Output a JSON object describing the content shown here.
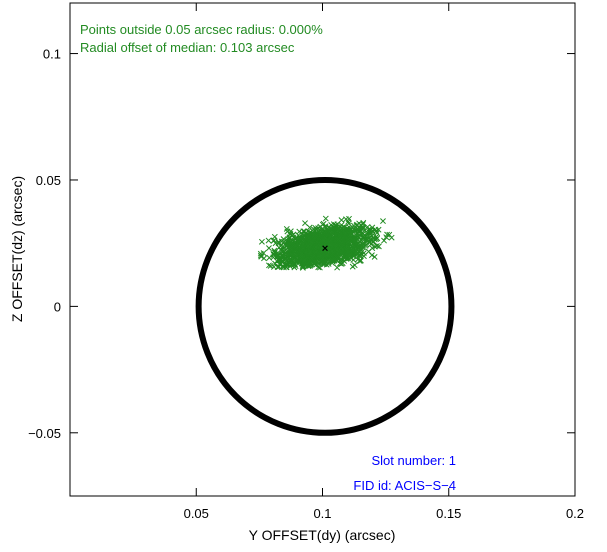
{
  "chart_data": {
    "type": "scatter",
    "xlabel": "Y OFFSET(dy) (arcsec)",
    "ylabel": "Z OFFSET(dz) (arcsec)",
    "xlim": [
      0.0,
      0.2
    ],
    "ylim": [
      -0.075,
      0.12
    ],
    "x_ticks": [
      {
        "value": 0.05,
        "label": "0.05"
      },
      {
        "value": 0.1,
        "label": "0.1"
      },
      {
        "value": 0.15,
        "label": "0.15"
      },
      {
        "value": 0.2,
        "label": "0.2"
      }
    ],
    "y_ticks": [
      {
        "value": -0.05,
        "label": "−0.05"
      },
      {
        "value": 0.0,
        "label": "0"
      },
      {
        "value": 0.05,
        "label": "0.05"
      },
      {
        "value": 0.1,
        "label": "0.1"
      }
    ],
    "grid": false,
    "circle": {
      "center_x": 0.101,
      "center_y": 0.0,
      "radius": 0.05,
      "color": "#000000"
    },
    "median": {
      "x": 0.101,
      "y": 0.023,
      "color": "#000000"
    },
    "cloud": {
      "color": "#228b22",
      "center_x": 0.1,
      "center_y": 0.0235,
      "extent_x": [
        0.075,
        0.135
      ],
      "extent_y": [
        0.015,
        0.036
      ]
    },
    "annotations": {
      "points_outside": "Points outside 0.05 arcsec radius: 0.000%",
      "radial_offset": "Radial offset of median: 0.103 arcsec",
      "slot_number": "Slot number: 1",
      "fid_id": "FID id: ACIS−S−4"
    },
    "annotation_colors": {
      "top": "#228b22",
      "bottom": "#0000ff"
    }
  }
}
